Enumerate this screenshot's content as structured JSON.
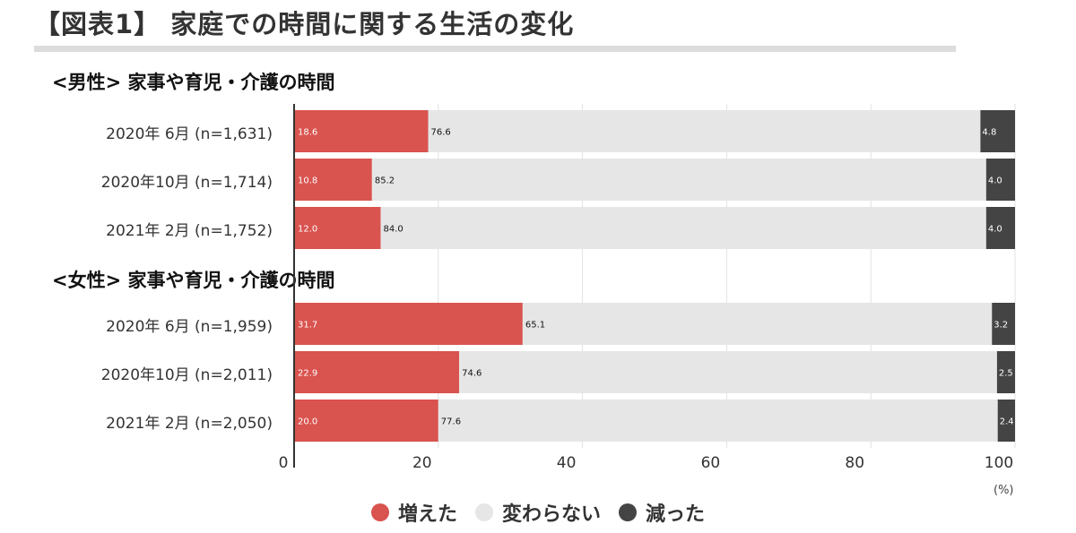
{
  "title": "【図表1】 家庭での時間に関する生活の変化",
  "unit": "(%)",
  "colors": {
    "increased": "#d9534f",
    "unchanged": "#e6e6e6",
    "decreased": "#444444"
  },
  "legend": [
    {
      "key": "increased",
      "label": "増えた"
    },
    {
      "key": "unchanged",
      "label": "変わらない"
    },
    {
      "key": "decreased",
      "label": "減った"
    }
  ],
  "chart_data": {
    "type": "bar",
    "orientation": "horizontal",
    "stacked": true,
    "xlim": [
      0,
      100
    ],
    "xticks": [
      "0",
      "20",
      "40",
      "60",
      "80",
      "100"
    ],
    "grid": true,
    "legend_position": "bottom",
    "sections": [
      {
        "title": "<男性> 家事や育児・介護の時間",
        "rows": [
          {
            "label": "2020年 6月 (n=1,631)",
            "values": [
              18.6,
              76.6,
              4.8
            ]
          },
          {
            "label": "2020年10月 (n=1,714)",
            "values": [
              10.8,
              85.2,
              4.0
            ]
          },
          {
            "label": "2021年 2月 (n=1,752)",
            "values": [
              12.0,
              84.0,
              4.0
            ]
          }
        ]
      },
      {
        "title": "<女性> 家事や育児・介護の時間",
        "rows": [
          {
            "label": "2020年 6月 (n=1,959)",
            "values": [
              31.7,
              65.1,
              3.2
            ]
          },
          {
            "label": "2020年10月 (n=2,011)",
            "values": [
              22.9,
              74.6,
              2.5
            ]
          },
          {
            "label": "2021年 2月 (n=2,050)",
            "values": [
              20.0,
              77.6,
              2.4
            ]
          }
        ]
      }
    ]
  }
}
